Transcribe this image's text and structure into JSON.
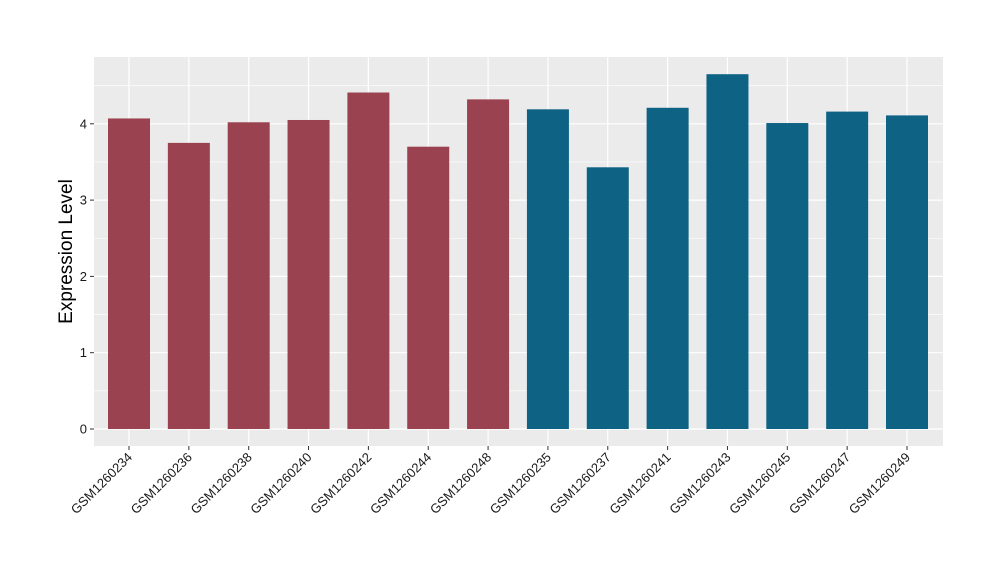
{
  "chart_data": {
    "type": "bar",
    "title": "",
    "xlabel": "",
    "ylabel": "Expression Level",
    "ylim": [
      0,
      4.85
    ],
    "yticks": [
      0,
      1,
      2,
      3,
      4
    ],
    "grid": true,
    "categories": [
      "GSM1260234",
      "GSM1260236",
      "GSM1260238",
      "GSM1260240",
      "GSM1260242",
      "GSM1260244",
      "GSM1260248",
      "GSM1260235",
      "GSM1260237",
      "GSM1260241",
      "GSM1260243",
      "GSM1260245",
      "GSM1260247",
      "GSM1260249"
    ],
    "values": [
      4.07,
      3.75,
      4.02,
      4.05,
      4.41,
      3.7,
      4.32,
      4.19,
      3.43,
      4.21,
      4.65,
      4.01,
      4.16,
      4.11
    ],
    "group_index": [
      0,
      0,
      0,
      0,
      0,
      0,
      0,
      1,
      1,
      1,
      1,
      1,
      1,
      1
    ],
    "group_colors": [
      "#9b4250",
      "#0e6384"
    ],
    "panel_background": "#ebebeb",
    "gridline_color": "#ffffff"
  }
}
